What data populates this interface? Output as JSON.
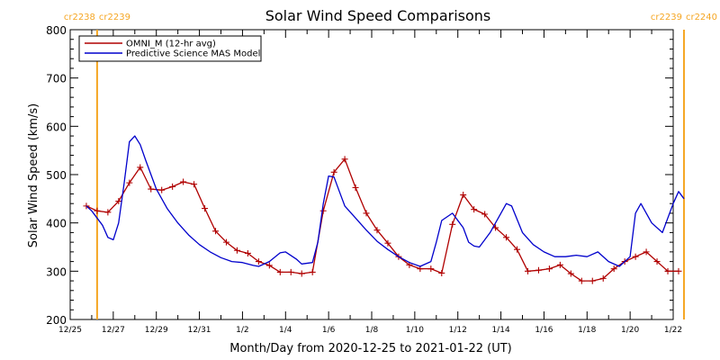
{
  "chart_data": {
    "type": "line",
    "title": "Solar Wind Speed Comparisons",
    "xlabel": "Month/Day from 2020-12-25 to 2021-01-22 (UT)",
    "ylabel": "Solar Wind Speed (km/s)",
    "ylim": [
      200,
      800
    ],
    "yticks": [
      200,
      300,
      400,
      500,
      600,
      700,
      800
    ],
    "xlim": [
      "2020-12-25",
      "2021-01-22"
    ],
    "xticks": [
      {
        "label": "12/25",
        "date": "2020-12-25"
      },
      {
        "label": "12/27",
        "date": "2020-12-27"
      },
      {
        "label": "12/29",
        "date": "2020-12-29"
      },
      {
        "label": "12/31",
        "date": "2020-12-31"
      },
      {
        "label": "1/2",
        "date": "2021-01-02"
      },
      {
        "label": "1/4",
        "date": "2021-01-04"
      },
      {
        "label": "1/6",
        "date": "2021-01-06"
      },
      {
        "label": "1/8",
        "date": "2021-01-08"
      },
      {
        "label": "1/10",
        "date": "2021-01-10"
      },
      {
        "label": "1/12",
        "date": "2021-01-12"
      },
      {
        "label": "1/14",
        "date": "2021-01-14"
      },
      {
        "label": "1/16",
        "date": "2021-01-16"
      },
      {
        "label": "1/18",
        "date": "2021-01-18"
      },
      {
        "label": "1/20",
        "date": "2021-01-20"
      },
      {
        "label": "1/22",
        "date": "2021-01-22"
      }
    ],
    "legend": {
      "position": "top-left"
    },
    "carrington_markers": [
      {
        "date": "2020-12-26 06:00",
        "labels": [
          "cr2238",
          "cr2239"
        ],
        "color": "#f5a623"
      },
      {
        "date": "2021-01-22 12:00",
        "labels": [
          "cr2239",
          "cr2240"
        ],
        "color": "#f5a623"
      }
    ],
    "series": [
      {
        "name": "OMNI_M (12-hr avg)",
        "color": "#b00000",
        "markers": "plus",
        "points": [
          [
            "2020-12-25 18:00",
            435
          ],
          [
            "2020-12-26 06:00",
            425
          ],
          [
            "2020-12-26 18:00",
            422
          ],
          [
            "2020-12-27 06:00",
            445
          ],
          [
            "2020-12-27 18:00",
            483
          ],
          [
            "2020-12-28 06:00",
            515
          ],
          [
            "2020-12-28 18:00",
            470
          ],
          [
            "2020-12-29 06:00",
            468
          ],
          [
            "2020-12-29 18:00",
            475
          ],
          [
            "2020-12-30 06:00",
            485
          ],
          [
            "2020-12-30 18:00",
            480
          ],
          [
            "2020-12-31 06:00",
            430
          ],
          [
            "2020-12-31 18:00",
            383
          ],
          [
            "2021-01-01 06:00",
            360
          ],
          [
            "2021-01-01 18:00",
            343
          ],
          [
            "2021-01-02 06:00",
            337
          ],
          [
            "2021-01-02 18:00",
            320
          ],
          [
            "2021-01-03 06:00",
            312
          ],
          [
            "2021-01-03 18:00",
            298
          ],
          [
            "2021-01-04 06:00",
            298
          ],
          [
            "2021-01-04 18:00",
            295
          ],
          [
            "2021-01-05 06:00",
            298
          ],
          [
            "2021-01-05 18:00",
            425
          ],
          [
            "2021-01-06 06:00",
            505
          ],
          [
            "2021-01-06 18:00",
            532
          ],
          [
            "2021-01-07 06:00",
            473
          ],
          [
            "2021-01-07 18:00",
            420
          ],
          [
            "2021-01-08 06:00",
            385
          ],
          [
            "2021-01-08 18:00",
            358
          ],
          [
            "2021-01-09 06:00",
            330
          ],
          [
            "2021-01-09 18:00",
            313
          ],
          [
            "2021-01-10 06:00",
            305
          ],
          [
            "2021-01-10 18:00",
            305
          ],
          [
            "2021-01-11 06:00",
            296
          ],
          [
            "2021-01-11 18:00",
            397
          ],
          [
            "2021-01-12 06:00",
            458
          ],
          [
            "2021-01-12 18:00",
            428
          ],
          [
            "2021-01-13 06:00",
            418
          ],
          [
            "2021-01-13 18:00",
            390
          ],
          [
            "2021-01-14 06:00",
            370
          ],
          [
            "2021-01-14 18:00",
            345
          ],
          [
            "2021-01-15 06:00",
            300
          ],
          [
            "2021-01-15 18:00",
            302
          ],
          [
            "2021-01-16 06:00",
            305
          ],
          [
            "2021-01-16 18:00",
            313
          ],
          [
            "2021-01-17 06:00",
            295
          ],
          [
            "2021-01-17 18:00",
            280
          ],
          [
            "2021-01-18 06:00",
            280
          ],
          [
            "2021-01-18 18:00",
            285
          ],
          [
            "2021-01-19 06:00",
            305
          ],
          [
            "2021-01-19 18:00",
            320
          ],
          [
            "2021-01-20 06:00",
            330
          ],
          [
            "2021-01-20 18:00",
            340
          ],
          [
            "2021-01-21 06:00",
            320
          ],
          [
            "2021-01-21 18:00",
            300
          ],
          [
            "2021-01-22 06:00",
            300
          ]
        ]
      },
      {
        "name": "Predictive Science MAS Model",
        "color": "#0000cc",
        "markers": "none",
        "points": [
          [
            "2020-12-25 18:00",
            435
          ],
          [
            "2020-12-26 00:00",
            425
          ],
          [
            "2020-12-26 12:00",
            395
          ],
          [
            "2020-12-26 18:00",
            370
          ],
          [
            "2020-12-27 00:00",
            365
          ],
          [
            "2020-12-27 06:00",
            400
          ],
          [
            "2020-12-27 12:00",
            480
          ],
          [
            "2020-12-27 18:00",
            568
          ],
          [
            "2020-12-28 00:00",
            580
          ],
          [
            "2020-12-28 06:00",
            562
          ],
          [
            "2020-12-28 12:00",
            530
          ],
          [
            "2020-12-29 00:00",
            470
          ],
          [
            "2020-12-29 12:00",
            430
          ],
          [
            "2020-12-30 00:00",
            400
          ],
          [
            "2020-12-30 12:00",
            375
          ],
          [
            "2020-12-31 00:00",
            355
          ],
          [
            "2020-12-31 12:00",
            340
          ],
          [
            "2021-01-01 00:00",
            328
          ],
          [
            "2021-01-01 12:00",
            320
          ],
          [
            "2021-01-02 00:00",
            318
          ],
          [
            "2021-01-02 12:00",
            312
          ],
          [
            "2021-01-02 18:00",
            310
          ],
          [
            "2021-01-03 06:00",
            320
          ],
          [
            "2021-01-03 18:00",
            338
          ],
          [
            "2021-01-04 00:00",
            340
          ],
          [
            "2021-01-04 12:00",
            325
          ],
          [
            "2021-01-04 18:00",
            315
          ],
          [
            "2021-01-05 06:00",
            318
          ],
          [
            "2021-01-05 12:00",
            360
          ],
          [
            "2021-01-05 18:00",
            440
          ],
          [
            "2021-01-06 00:00",
            497
          ],
          [
            "2021-01-06 06:00",
            495
          ],
          [
            "2021-01-06 12:00",
            465
          ],
          [
            "2021-01-06 18:00",
            435
          ],
          [
            "2021-01-07 06:00",
            410
          ],
          [
            "2021-01-07 18:00",
            385
          ],
          [
            "2021-01-08 06:00",
            362
          ],
          [
            "2021-01-08 18:00",
            345
          ],
          [
            "2021-01-09 06:00",
            330
          ],
          [
            "2021-01-09 18:00",
            318
          ],
          [
            "2021-01-10 06:00",
            310
          ],
          [
            "2021-01-10 18:00",
            320
          ],
          [
            "2021-01-11 00:00",
            360
          ],
          [
            "2021-01-11 06:00",
            405
          ],
          [
            "2021-01-11 18:00",
            420
          ],
          [
            "2021-01-12 06:00",
            390
          ],
          [
            "2021-01-12 12:00",
            360
          ],
          [
            "2021-01-12 18:00",
            352
          ],
          [
            "2021-01-13 00:00",
            350
          ],
          [
            "2021-01-13 12:00",
            380
          ],
          [
            "2021-01-14 00:00",
            420
          ],
          [
            "2021-01-14 06:00",
            440
          ],
          [
            "2021-01-14 12:00",
            435
          ],
          [
            "2021-01-15 00:00",
            380
          ],
          [
            "2021-01-15 12:00",
            355
          ],
          [
            "2021-01-16 00:00",
            340
          ],
          [
            "2021-01-16 12:00",
            330
          ],
          [
            "2021-01-17 00:00",
            330
          ],
          [
            "2021-01-17 12:00",
            333
          ],
          [
            "2021-01-18 00:00",
            330
          ],
          [
            "2021-01-18 12:00",
            340
          ],
          [
            "2021-01-19 00:00",
            320
          ],
          [
            "2021-01-19 12:00",
            310
          ],
          [
            "2021-01-20 00:00",
            330
          ],
          [
            "2021-01-20 06:00",
            420
          ],
          [
            "2021-01-20 12:00",
            440
          ],
          [
            "2021-01-21 00:00",
            400
          ],
          [
            "2021-01-21 12:00",
            380
          ],
          [
            "2021-01-22 00:00",
            440
          ],
          [
            "2021-01-22 06:00",
            465
          ],
          [
            "2021-01-22 12:00",
            450
          ]
        ]
      }
    ]
  }
}
